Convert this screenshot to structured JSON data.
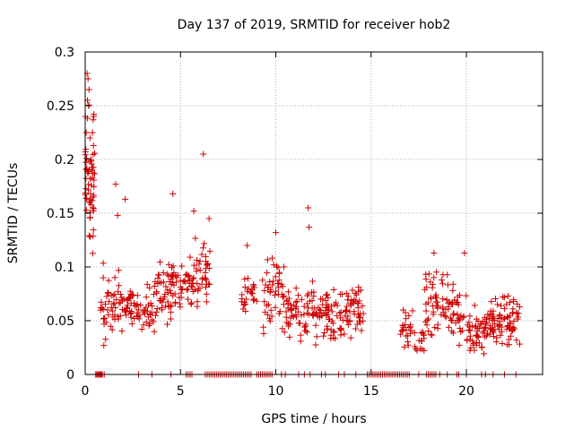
{
  "chart_data": {
    "type": "scatter",
    "title": "Day 137 of 2019, SRMTID for receiver hob2",
    "xlabel": "GPS time / hours",
    "ylabel": "SRMTID / TECUs",
    "xlim": [
      0,
      24
    ],
    "ylim": [
      0,
      0.3
    ],
    "grid": true,
    "marker": "+",
    "color": "#d00000",
    "xticks": [
      0,
      5,
      10,
      15,
      20
    ],
    "yticks": [
      0,
      0.05,
      0.1,
      0.15,
      0.2,
      0.25,
      0.3
    ],
    "xtick_labels": [
      "0",
      "5",
      "10",
      "15",
      "20"
    ],
    "ytick_labels": [
      "0",
      "0.05",
      "0.1",
      "0.15",
      "0.2",
      "0.25",
      "0.3"
    ],
    "segments": [
      {
        "start": 0.0,
        "end": 0.5,
        "min": 0.08,
        "max": 0.28,
        "n": 60
      },
      {
        "start": 0.8,
        "end": 2.0,
        "min": 0.02,
        "max": 0.11,
        "n": 50
      },
      {
        "start": 2.0,
        "end": 3.5,
        "min": 0.03,
        "max": 0.09,
        "n": 60
      },
      {
        "start": 3.5,
        "end": 4.5,
        "min": 0.03,
        "max": 0.12,
        "n": 45
      },
      {
        "start": 4.5,
        "end": 5.5,
        "min": 0.05,
        "max": 0.12,
        "n": 45
      },
      {
        "start": 5.5,
        "end": 6.6,
        "min": 0.04,
        "max": 0.14,
        "n": 50
      },
      {
        "start": 8.2,
        "end": 9.0,
        "min": 0.05,
        "max": 0.1,
        "n": 25
      },
      {
        "start": 9.3,
        "end": 10.5,
        "min": 0.03,
        "max": 0.12,
        "n": 50
      },
      {
        "start": 10.5,
        "end": 12.0,
        "min": 0.02,
        "max": 0.1,
        "n": 60
      },
      {
        "start": 12.0,
        "end": 13.2,
        "min": 0.02,
        "max": 0.09,
        "n": 55
      },
      {
        "start": 13.2,
        "end": 14.6,
        "min": 0.02,
        "max": 0.1,
        "n": 65
      },
      {
        "start": 16.5,
        "end": 17.2,
        "min": 0.02,
        "max": 0.07,
        "n": 25
      },
      {
        "start": 17.2,
        "end": 17.8,
        "min": 0.01,
        "max": 0.05,
        "n": 15
      },
      {
        "start": 17.8,
        "end": 19.0,
        "min": 0.02,
        "max": 0.11,
        "n": 50
      },
      {
        "start": 19.0,
        "end": 20.0,
        "min": 0.02,
        "max": 0.09,
        "n": 40
      },
      {
        "start": 20.0,
        "end": 21.0,
        "min": 0.01,
        "max": 0.07,
        "n": 45
      },
      {
        "start": 21.0,
        "end": 22.8,
        "min": 0.02,
        "max": 0.08,
        "n": 90
      }
    ],
    "highlights": [
      {
        "x": 0.1,
        "y": 0.28
      },
      {
        "x": 0.15,
        "y": 0.275
      },
      {
        "x": 0.2,
        "y": 0.265
      },
      {
        "x": 0.12,
        "y": 0.255
      },
      {
        "x": 0.18,
        "y": 0.25
      },
      {
        "x": 0.25,
        "y": 0.22
      },
      {
        "x": 0.05,
        "y": 0.225
      },
      {
        "x": 0.3,
        "y": 0.2
      },
      {
        "x": 0.35,
        "y": 0.19
      },
      {
        "x": 0.22,
        "y": 0.16
      },
      {
        "x": 0.4,
        "y": 0.155
      },
      {
        "x": 1.6,
        "y": 0.177
      },
      {
        "x": 1.7,
        "y": 0.148
      },
      {
        "x": 2.1,
        "y": 0.163
      },
      {
        "x": 4.6,
        "y": 0.168
      },
      {
        "x": 6.2,
        "y": 0.205
      },
      {
        "x": 5.7,
        "y": 0.152
      },
      {
        "x": 6.5,
        "y": 0.145
      },
      {
        "x": 8.5,
        "y": 0.12
      },
      {
        "x": 10.0,
        "y": 0.132
      },
      {
        "x": 11.7,
        "y": 0.155
      },
      {
        "x": 11.75,
        "y": 0.137
      },
      {
        "x": 18.3,
        "y": 0.113
      },
      {
        "x": 19.9,
        "y": 0.113
      }
    ],
    "zero_points": [
      0.55,
      0.6,
      0.65,
      0.7,
      0.75,
      0.8,
      0.85,
      0.9,
      1.0,
      2.8,
      3.5,
      4.5,
      5.3,
      5.4,
      5.5,
      5.6,
      6.3,
      6.4,
      6.5,
      6.6,
      6.7,
      6.8,
      6.9,
      7.0,
      7.1,
      7.2,
      7.3,
      7.4,
      7.5,
      7.6,
      7.7,
      7.8,
      7.9,
      8.0,
      8.1,
      8.2,
      8.3,
      8.4,
      8.5,
      8.6,
      8.7,
      9.0,
      9.1,
      9.2,
      9.3,
      9.4,
      9.5,
      9.6,
      9.7,
      9.8,
      10.3,
      10.5,
      11.2,
      11.5,
      11.8,
      12.4,
      12.6,
      13.3,
      13.6,
      14.2,
      14.8,
      14.9,
      15.0,
      15.1,
      15.2,
      15.3,
      15.4,
      15.5,
      15.6,
      15.7,
      15.8,
      15.9,
      16.0,
      16.1,
      16.2,
      16.3,
      16.4,
      16.5,
      16.6,
      16.7,
      16.8,
      16.9,
      17.0,
      17.5,
      17.9,
      18.0,
      18.1,
      18.2,
      18.3,
      18.4,
      18.6,
      19.0,
      19.5,
      19.6,
      20.0,
      20.8,
      21.0,
      21.4,
      22.0,
      22.6
    ]
  }
}
